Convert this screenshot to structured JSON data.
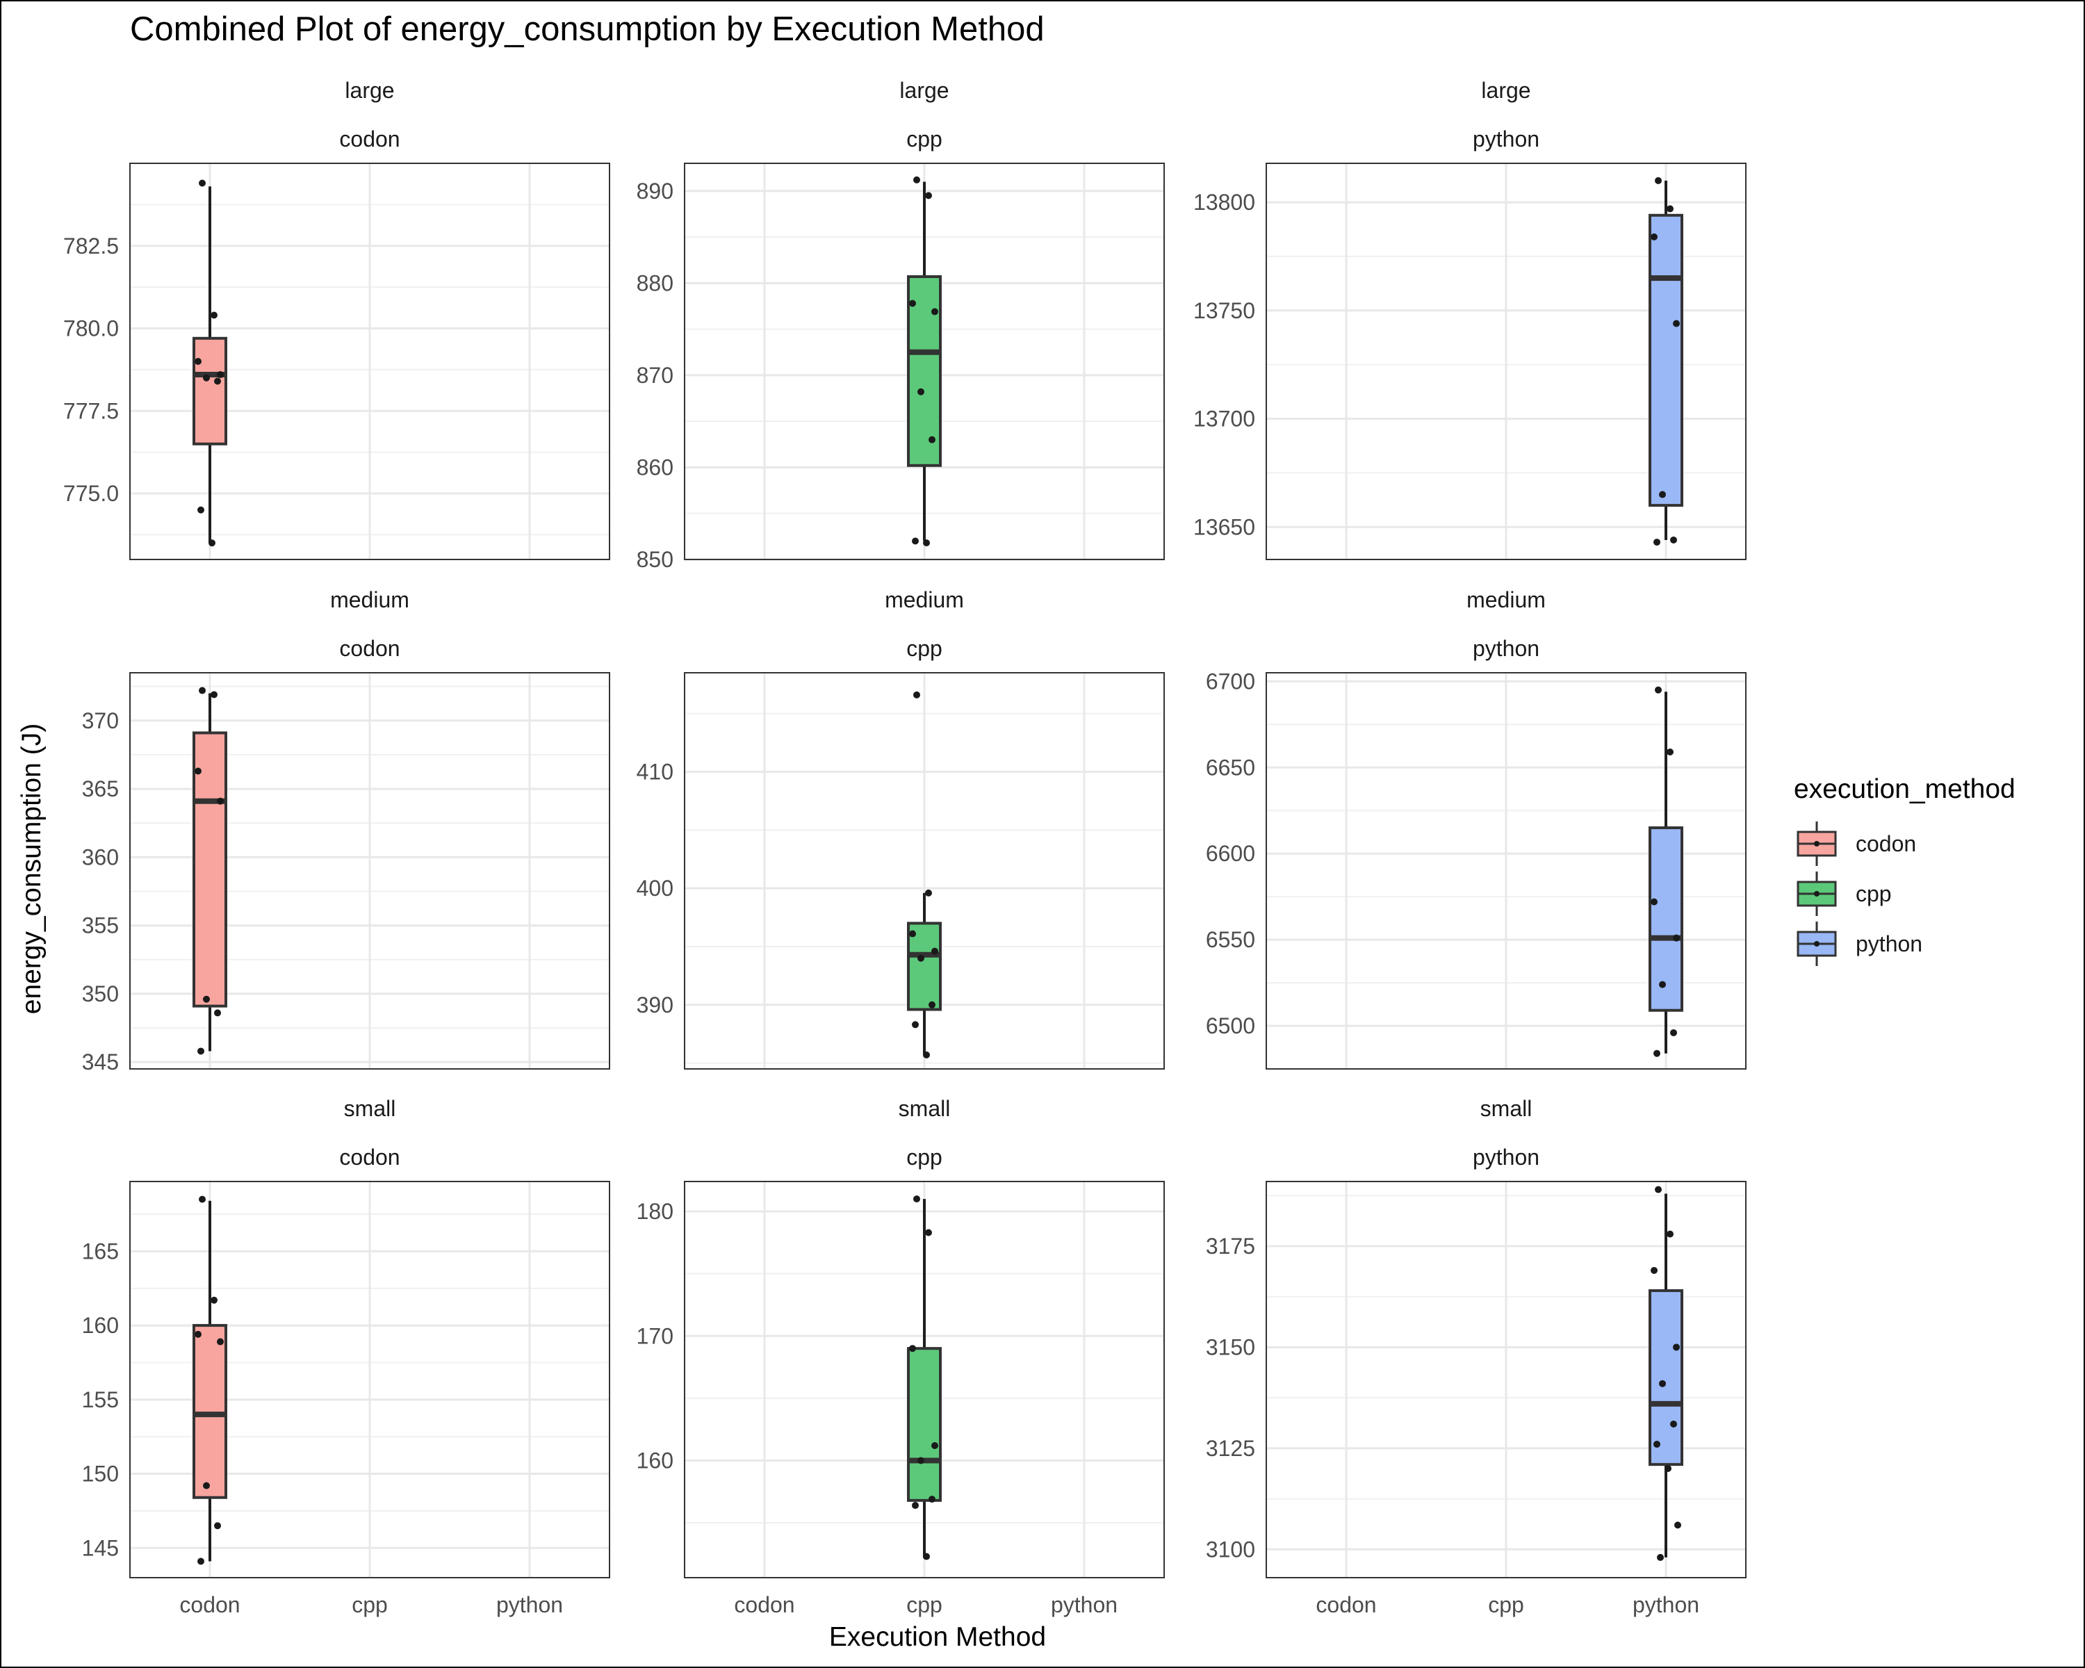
{
  "chart_data": {
    "type": "boxplot",
    "title": "Combined Plot of energy_consumption by Execution Method",
    "xlabel": "Execution Method",
    "ylabel": "energy_consumption (J)",
    "x_categories": [
      "codon",
      "cpp",
      "python"
    ],
    "grid": true,
    "legend": {
      "title": "execution_method",
      "position": "right",
      "entries": [
        {
          "name": "codon",
          "color": "#F8A59F"
        },
        {
          "name": "cpp",
          "color": "#5CC97A"
        },
        {
          "name": "python",
          "color": "#9AB8F5"
        }
      ]
    },
    "facets": [
      {
        "size": "large",
        "method": "codon",
        "ylim": [
          773.0,
          785.0
        ],
        "ticks": [
          775.0,
          777.5,
          780.0,
          782.5
        ],
        "box": {
          "min": 773.5,
          "q1": 776.5,
          "median": 778.6,
          "q3": 779.7,
          "max": 784.3
        },
        "points": [
          784.4,
          780.4,
          779.0,
          778.6,
          778.5,
          778.4,
          774.5,
          773.5
        ]
      },
      {
        "size": "large",
        "method": "cpp",
        "ylim": [
          850,
          893
        ],
        "ticks": [
          850,
          860,
          870,
          880,
          890
        ],
        "box": {
          "min": 852,
          "q1": 860.2,
          "median": 872.5,
          "q3": 880.7,
          "max": 891
        },
        "points": [
          891.2,
          889.5,
          877.8,
          876.9,
          868.2,
          863.0,
          852.0,
          851.8
        ]
      },
      {
        "size": "large",
        "method": "python",
        "ylim": [
          13635,
          13818
        ],
        "ticks": [
          13650,
          13700,
          13750,
          13800
        ],
        "box": {
          "min": 13644,
          "q1": 13660,
          "median": 13765,
          "q3": 13794,
          "max": 13810
        },
        "points": [
          13810,
          13797,
          13784,
          13744,
          13665,
          13644,
          13643
        ]
      },
      {
        "size": "medium",
        "method": "codon",
        "ylim": [
          344.5,
          373.5
        ],
        "ticks": [
          345,
          350,
          355,
          360,
          365,
          370
        ],
        "box": {
          "min": 345.8,
          "q1": 349.1,
          "median": 364.1,
          "q3": 369.1,
          "max": 372
        },
        "points": [
          372.2,
          371.9,
          366.3,
          364.1,
          349.6,
          348.6,
          345.8
        ]
      },
      {
        "size": "medium",
        "method": "cpp",
        "ylim": [
          384.5,
          418.5
        ],
        "ticks": [
          390,
          400,
          410
        ],
        "box": {
          "min": 385.7,
          "q1": 389.6,
          "median": 394.3,
          "q3": 397.0,
          "max": 399.6
        },
        "points": [
          416.6,
          399.6,
          396.1,
          394.6,
          394.0,
          390.0,
          388.3,
          385.7
        ]
      },
      {
        "size": "medium",
        "method": "python",
        "ylim": [
          6475,
          6705
        ],
        "ticks": [
          6500,
          6550,
          6600,
          6650,
          6700
        ],
        "box": {
          "min": 6484,
          "q1": 6509,
          "median": 6551,
          "q3": 6615,
          "max": 6694
        },
        "points": [
          6695,
          6659,
          6572,
          6551,
          6524,
          6496,
          6484
        ]
      },
      {
        "size": "small",
        "method": "codon",
        "ylim": [
          143,
          169.7
        ],
        "ticks": [
          145,
          150,
          155,
          160,
          165
        ],
        "box": {
          "min": 144.1,
          "q1": 148.4,
          "median": 154.0,
          "q3": 160.0,
          "max": 168.4
        },
        "points": [
          168.5,
          161.7,
          159.4,
          158.9,
          149.2,
          146.5,
          144.1
        ]
      },
      {
        "size": "small",
        "method": "cpp",
        "ylim": [
          150.6,
          182.4
        ],
        "ticks": [
          160,
          170,
          180
        ],
        "box": {
          "min": 152.2,
          "q1": 156.8,
          "median": 160.0,
          "q3": 169.0,
          "max": 181.0
        },
        "points": [
          181.0,
          178.3,
          169.0,
          161.2,
          160.0,
          156.9,
          156.4,
          152.3
        ]
      },
      {
        "size": "small",
        "method": "python",
        "ylim": [
          3093,
          3191
        ],
        "ticks": [
          3100,
          3125,
          3150,
          3175
        ],
        "box": {
          "min": 3098,
          "q1": 3121,
          "median": 3136,
          "q3": 3164,
          "max": 3188
        },
        "points": [
          3189,
          3178,
          3169,
          3150,
          3141,
          3131,
          3126,
          3120,
          3106,
          3098
        ]
      }
    ]
  }
}
